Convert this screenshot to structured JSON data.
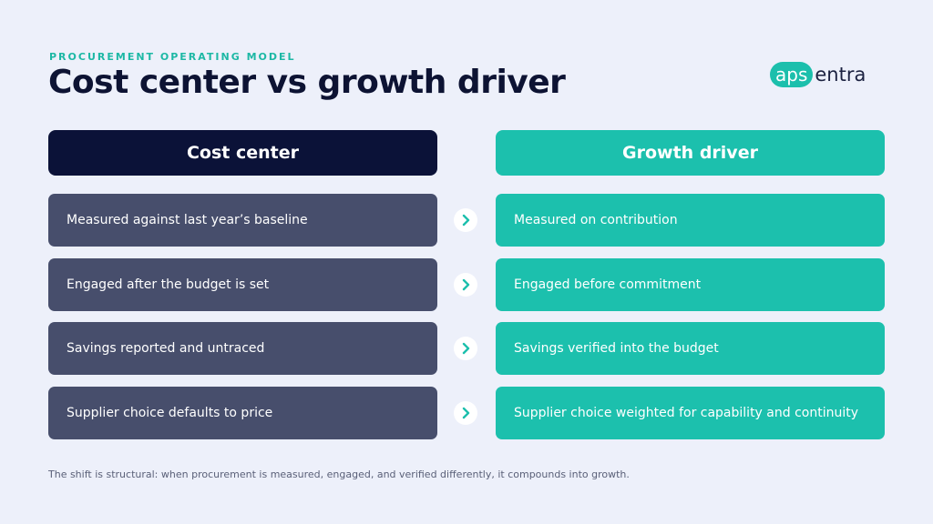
{
  "header": {
    "eyebrow": "PROCUREMENT OPERATING MODEL",
    "title": "Cost center vs growth driver"
  },
  "logo": {
    "mark": "aps",
    "text": "entra"
  },
  "columns": [
    {
      "title": "Cost center",
      "rows": [
        "Measured against last year’s baseline",
        "Engaged after the budget is set",
        "Savings reported and untraced",
        "Supplier choice defaults to price"
      ]
    },
    {
      "title": "Growth driver",
      "rows": [
        "Measured on contribution",
        "Engaged before commitment",
        "Savings verified into the budget",
        "Supplier choice weighted for capability and continuity"
      ]
    }
  ],
  "footer": "The shift is structural: when procurement is measured, engaged, and verified differently, it compounds into growth."
}
